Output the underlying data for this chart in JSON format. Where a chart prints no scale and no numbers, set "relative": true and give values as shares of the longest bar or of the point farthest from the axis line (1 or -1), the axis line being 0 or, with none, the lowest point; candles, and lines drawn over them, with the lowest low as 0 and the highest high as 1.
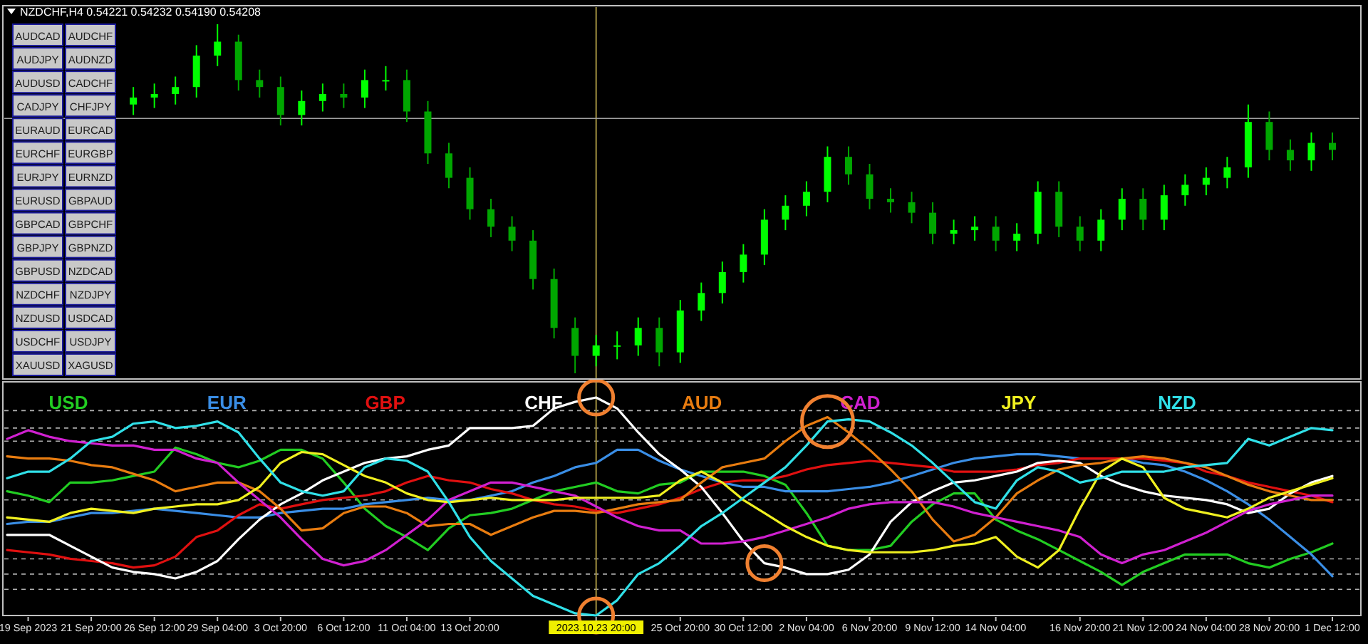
{
  "chart_data": [
    {
      "type": "candlestick",
      "title": "NZDCHF,H4 0.54221 0.54232 0.54190 0.54208",
      "relative": true,
      "colors": [
        "#00ff00",
        "#00ff00",
        "#00ff00",
        "#00ff00",
        "#00ff00",
        "#00a600",
        "#00a600",
        "#00a600",
        "#00ff00",
        "#00ff00",
        "#00a600",
        "#00ff00",
        "#00ff00",
        "#00a600",
        "#00a600",
        "#00a600",
        "#00a600",
        "#00a600",
        "#00a600",
        "#00a600",
        "#00a600",
        "#00a600",
        "#00ff00",
        "#00ff00",
        "#00ff00",
        "#00a600",
        "#00ff00",
        "#00ff00",
        "#00ff00",
        "#00ff00",
        "#00ff00",
        "#00ff00",
        "#00ff00",
        "#00ff00",
        "#00a600",
        "#00a600",
        "#00a600",
        "#00a600",
        "#00a600",
        "#00ff00",
        "#00ff00",
        "#00a600",
        "#00ff00",
        "#00ff00",
        "#00a600",
        "#00a600",
        "#00ff00",
        "#00ff00",
        "#00a600",
        "#00ff00",
        "#00ff00",
        "#00ff00",
        "#00ff00",
        "#00ff00",
        "#00a600",
        "#00a600",
        "#00ff00",
        "#00a600"
      ],
      "categories": [
        null,
        null,
        null,
        null,
        null,
        null,
        null,
        null,
        null,
        null,
        null,
        null,
        null,
        null,
        null,
        null,
        null,
        null,
        null,
        null,
        null,
        null,
        null,
        null,
        null,
        null,
        null,
        null,
        null,
        null,
        null,
        null,
        null,
        null,
        null,
        null,
        null,
        null,
        null,
        null,
        null,
        null,
        null,
        null,
        null,
        null,
        null,
        null,
        null,
        null,
        null,
        null,
        null,
        null,
        null,
        null,
        null,
        null
      ],
      "ohlc": [
        [
          0.77,
          0.82,
          0.74,
          0.79
        ],
        [
          0.79,
          0.83,
          0.76,
          0.8
        ],
        [
          0.8,
          0.85,
          0.77,
          0.82
        ],
        [
          0.82,
          0.94,
          0.79,
          0.91
        ],
        [
          0.91,
          1,
          0.88,
          0.95
        ],
        [
          0.95,
          0.97,
          0.81,
          0.84
        ],
        [
          0.84,
          0.87,
          0.79,
          0.82
        ],
        [
          0.82,
          0.85,
          0.71,
          0.74
        ],
        [
          0.74,
          0.81,
          0.71,
          0.78
        ],
        [
          0.78,
          0.83,
          0.75,
          0.8
        ],
        [
          0.8,
          0.83,
          0.76,
          0.79
        ],
        [
          0.79,
          0.87,
          0.76,
          0.84
        ],
        [
          0.84,
          0.88,
          0.81,
          0.84
        ],
        [
          0.84,
          0.87,
          0.72,
          0.75
        ],
        [
          0.75,
          0.78,
          0.6,
          0.63
        ],
        [
          0.63,
          0.66,
          0.53,
          0.56
        ],
        [
          0.56,
          0.59,
          0.44,
          0.47
        ],
        [
          0.47,
          0.5,
          0.39,
          0.42
        ],
        [
          0.42,
          0.45,
          0.35,
          0.38
        ],
        [
          0.38,
          0.41,
          0.24,
          0.27
        ],
        [
          0.27,
          0.3,
          0.1,
          0.13
        ],
        [
          0.13,
          0.16,
          0,
          0.05
        ],
        [
          0.05,
          0.11,
          0.02,
          0.08
        ],
        [
          0.08,
          0.12,
          0.04,
          0.08
        ],
        [
          0.08,
          0.16,
          0.05,
          0.13
        ],
        [
          0.13,
          0.16,
          0.02,
          0.06
        ],
        [
          0.06,
          0.21,
          0.03,
          0.18
        ],
        [
          0.18,
          0.26,
          0.15,
          0.23
        ],
        [
          0.23,
          0.32,
          0.2,
          0.29
        ],
        [
          0.29,
          0.37,
          0.26,
          0.34
        ],
        [
          0.34,
          0.47,
          0.31,
          0.44
        ],
        [
          0.44,
          0.51,
          0.41,
          0.48
        ],
        [
          0.48,
          0.55,
          0.45,
          0.52
        ],
        [
          0.52,
          0.65,
          0.49,
          0.62
        ],
        [
          0.62,
          0.65,
          0.54,
          0.57
        ],
        [
          0.57,
          0.6,
          0.47,
          0.5
        ],
        [
          0.5,
          0.53,
          0.46,
          0.49
        ],
        [
          0.49,
          0.52,
          0.43,
          0.46
        ],
        [
          0.46,
          0.49,
          0.37,
          0.4
        ],
        [
          0.4,
          0.44,
          0.37,
          0.41
        ],
        [
          0.41,
          0.45,
          0.38,
          0.42
        ],
        [
          0.42,
          0.45,
          0.35,
          0.38
        ],
        [
          0.38,
          0.43,
          0.35,
          0.4
        ],
        [
          0.4,
          0.55,
          0.37,
          0.52
        ],
        [
          0.52,
          0.55,
          0.39,
          0.42
        ],
        [
          0.42,
          0.45,
          0.35,
          0.38
        ],
        [
          0.38,
          0.47,
          0.35,
          0.44
        ],
        [
          0.44,
          0.53,
          0.41,
          0.5
        ],
        [
          0.5,
          0.53,
          0.41,
          0.44
        ],
        [
          0.44,
          0.54,
          0.41,
          0.51
        ],
        [
          0.51,
          0.57,
          0.48,
          0.54
        ],
        [
          0.54,
          0.59,
          0.51,
          0.56
        ],
        [
          0.56,
          0.62,
          0.53,
          0.59
        ],
        [
          0.59,
          0.77,
          0.56,
          0.72
        ],
        [
          0.72,
          0.75,
          0.61,
          0.64
        ],
        [
          0.64,
          0.67,
          0.58,
          0.61
        ],
        [
          0.61,
          0.69,
          0.58,
          0.66
        ],
        [
          0.66,
          0.69,
          0.61,
          0.64
        ]
      ],
      "ref_lines": [
        {
          "axis": "y",
          "value": 0.73,
          "color": "#a0a0a0"
        }
      ],
      "annotations": [
        "AUDCAD",
        "AUDCHF",
        "AUDJPY",
        "AUDNZD",
        "AUDUSD",
        "CADCHF",
        "CADJPY",
        "CHFJPY",
        "EURAUD",
        "EURCAD",
        "EURCHF",
        "EURGBP",
        "EURJPY",
        "EURNZD",
        "EURUSD",
        "GBPAUD",
        "GBPCAD",
        "GBPCHF",
        "GBPJPY",
        "GBPNZD",
        "GBPUSD",
        "NZDCAD",
        "NZDCHF",
        "NZDJPY",
        "NZDUSD",
        "USDCAD",
        "USDCHF",
        "USDJPY",
        "XAUUSD",
        "XAGUSD"
      ]
    },
    {
      "type": "line",
      "relative": true,
      "legend": "top",
      "line_style": "solid",
      "marker": "none",
      "categories": [
        null,
        "19 Sep 2023",
        null,
        null,
        "21 Sep 20:00",
        null,
        null,
        "26 Sep 12:00",
        null,
        null,
        "29 Sep 04:00",
        null,
        null,
        "3 Oct 20:00",
        null,
        null,
        "6 Oct 12:00",
        null,
        null,
        "11 Oct 04:00",
        null,
        null,
        "13 Oct 20:00",
        null,
        null,
        null,
        null,
        null,
        "2023.10.23 20:00",
        null,
        null,
        null,
        "25 Oct 20:00",
        null,
        null,
        "30 Oct 12:00",
        null,
        null,
        "2 Nov 04:00",
        null,
        null,
        "6 Nov 20:00",
        null,
        null,
        "9 Nov 12:00",
        null,
        null,
        "14 Nov 04:00",
        null,
        null,
        null,
        "16 Nov 20:00",
        null,
        null,
        "21 Nov 12:00",
        null,
        null,
        "24 Nov 04:00",
        null,
        null,
        "28 Nov 20:00",
        null,
        null,
        "1 Dec 12:00"
      ],
      "series": [
        {
          "name": "USD",
          "color": "#22cc22",
          "values": [
            0.57,
            0.55,
            0.52,
            0.61,
            0.61,
            0.62,
            0.64,
            0.66,
            0.77,
            0.74,
            0.7,
            0.68,
            0.71,
            0.76,
            0.76,
            0.72,
            0.61,
            0.49,
            0.41,
            0.36,
            0.3,
            0.4,
            0.46,
            0.47,
            0.49,
            0.53,
            0.57,
            0.59,
            0.61,
            0.57,
            0.56,
            0.6,
            0.61,
            0.66,
            0.66,
            0.66,
            0.64,
            0.6,
            0.47,
            0.32,
            0.3,
            0.3,
            0.32,
            0.43,
            0.51,
            0.56,
            0.56,
            0.44,
            0.39,
            0.35,
            0.3,
            0.25,
            0.2,
            0.14,
            0.2,
            0.24,
            0.28,
            0.28,
            0.28,
            0.24,
            0.22,
            0.26,
            0.29,
            0.33
          ]
        },
        {
          "name": "EUR",
          "color": "#3a8ee6",
          "values": [
            0.42,
            0.43,
            0.43,
            0.45,
            0.47,
            0.47,
            0.48,
            0.49,
            0.48,
            0.47,
            0.46,
            0.45,
            0.45,
            0.47,
            0.48,
            0.49,
            0.49,
            0.51,
            0.52,
            0.53,
            0.54,
            0.53,
            0.53,
            0.55,
            0.57,
            0.61,
            0.64,
            0.68,
            0.7,
            0.76,
            0.76,
            0.71,
            0.67,
            0.64,
            0.61,
            0.59,
            0.59,
            0.57,
            0.57,
            0.57,
            0.58,
            0.59,
            0.61,
            0.64,
            0.67,
            0.7,
            0.72,
            0.73,
            0.74,
            0.74,
            0.73,
            0.72,
            0.72,
            0.72,
            0.7,
            0.69,
            0.66,
            0.62,
            0.57,
            0.51,
            0.44,
            0.36,
            0.28,
            0.18
          ]
        },
        {
          "name": "GBP",
          "color": "#e01010",
          "values": [
            0.3,
            0.29,
            0.28,
            0.26,
            0.25,
            0.24,
            0.22,
            0.23,
            0.27,
            0.36,
            0.39,
            0.46,
            0.51,
            0.49,
            0.51,
            0.53,
            0.54,
            0.55,
            0.57,
            0.61,
            0.64,
            0.62,
            0.61,
            0.58,
            0.56,
            0.53,
            0.51,
            0.5,
            0.48,
            0.47,
            0.49,
            0.51,
            0.54,
            0.58,
            0.61,
            0.62,
            0.62,
            0.64,
            0.67,
            0.69,
            0.7,
            0.71,
            0.7,
            0.69,
            0.68,
            0.66,
            0.66,
            0.66,
            0.67,
            0.69,
            0.7,
            0.72,
            0.72,
            0.72,
            0.72,
            0.71,
            0.7,
            0.66,
            0.64,
            0.61,
            0.59,
            0.57,
            0.55,
            0.52
          ]
        },
        {
          "name": "CHF",
          "color": "#ffffff",
          "values": [
            0.37,
            0.37,
            0.37,
            0.32,
            0.27,
            0.22,
            0.2,
            0.19,
            0.17,
            0.2,
            0.25,
            0.35,
            0.44,
            0.51,
            0.56,
            0.62,
            0.66,
            0.7,
            0.72,
            0.73,
            0.76,
            0.78,
            0.86,
            0.86,
            0.86,
            0.87,
            0.95,
            0.98,
            1,
            0.95,
            0.84,
            0.74,
            0.67,
            0.59,
            0.47,
            0.34,
            0.24,
            0.22,
            0.19,
            0.19,
            0.21,
            0.28,
            0.43,
            0.52,
            0.57,
            0.61,
            0.62,
            0.64,
            0.66,
            0.7,
            0.71,
            0.7,
            0.64,
            0.6,
            0.57,
            0.55,
            0.54,
            0.53,
            0.51,
            0.47,
            0.49,
            0.56,
            0.61,
            0.64
          ]
        },
        {
          "name": "AUD",
          "color": "#e87c10",
          "values": [
            0.73,
            0.72,
            0.72,
            0.71,
            0.69,
            0.68,
            0.65,
            0.62,
            0.57,
            0.59,
            0.61,
            0.61,
            0.57,
            0.49,
            0.39,
            0.4,
            0.47,
            0.5,
            0.5,
            0.47,
            0.41,
            0.42,
            0.42,
            0.37,
            0.41,
            0.45,
            0.48,
            0.48,
            0.47,
            0.49,
            0.51,
            0.52,
            0.53,
            0.61,
            0.68,
            0.7,
            0.72,
            0.8,
            0.87,
            0.91,
            0.84,
            0.76,
            0.67,
            0.57,
            0.44,
            0.34,
            0.37,
            0.45,
            0.56,
            0.62,
            0.67,
            0.69,
            0.7,
            0.72,
            0.73,
            0.72,
            0.7,
            0.68,
            0.64,
            0.6,
            0.57,
            0.55,
            0.53,
            0.53
          ]
        },
        {
          "name": "CAD",
          "color": "#d020d0",
          "values": [
            0.81,
            0.85,
            0.82,
            0.8,
            0.79,
            0.78,
            0.78,
            0.76,
            0.76,
            0.72,
            0.7,
            0.61,
            0.53,
            0.45,
            0.35,
            0.26,
            0.23,
            0.25,
            0.3,
            0.37,
            0.44,
            0.53,
            0.57,
            0.61,
            0.61,
            0.59,
            0.57,
            0.55,
            0.5,
            0.45,
            0.41,
            0.39,
            0.39,
            0.33,
            0.33,
            0.34,
            0.36,
            0.39,
            0.42,
            0.45,
            0.49,
            0.51,
            0.52,
            0.52,
            0.52,
            0.5,
            0.47,
            0.45,
            0.43,
            0.41,
            0.39,
            0.36,
            0.28,
            0.24,
            0.28,
            0.3,
            0.34,
            0.38,
            0.43,
            0.48,
            0.51,
            0.53,
            0.55,
            0.55
          ]
        },
        {
          "name": "JPY",
          "color": "#f0f020",
          "values": [
            0.45,
            0.44,
            0.43,
            0.47,
            0.49,
            0.48,
            0.47,
            0.49,
            0.5,
            0.51,
            0.51,
            0.53,
            0.59,
            0.7,
            0.75,
            0.74,
            0.69,
            0.64,
            0.61,
            0.56,
            0.53,
            0.52,
            0.53,
            0.54,
            0.53,
            0.53,
            0.53,
            0.54,
            0.54,
            0.54,
            0.54,
            0.55,
            0.62,
            0.66,
            0.61,
            0.53,
            0.47,
            0.41,
            0.36,
            0.32,
            0.3,
            0.29,
            0.29,
            0.29,
            0.3,
            0.32,
            0.33,
            0.36,
            0.27,
            0.22,
            0.3,
            0.49,
            0.66,
            0.72,
            0.68,
            0.54,
            0.49,
            0.47,
            0.45,
            0.49,
            0.54,
            0.57,
            0.6,
            0.63
          ]
        },
        {
          "name": "NZD",
          "color": "#30e0e8",
          "values": [
            0.63,
            0.66,
            0.66,
            0.72,
            0.8,
            0.82,
            0.88,
            0.89,
            0.86,
            0.87,
            0.89,
            0.84,
            0.72,
            0.61,
            0.57,
            0.55,
            0.57,
            0.68,
            0.72,
            0.71,
            0.66,
            0.52,
            0.36,
            0.25,
            0.17,
            0.09,
            0.05,
            0.01,
            0,
            0.07,
            0.19,
            0.24,
            0.32,
            0.41,
            0.47,
            0.54,
            0.61,
            0.68,
            0.78,
            0.89,
            0.9,
            0.89,
            0.84,
            0.78,
            0.7,
            0.61,
            0.52,
            0.49,
            0.62,
            0.68,
            0.66,
            0.61,
            0.63,
            0.66,
            0.66,
            0.66,
            0.68,
            0.69,
            0.7,
            0.81,
            0.78,
            0.82,
            0.86,
            0.85
          ]
        }
      ],
      "ref_lines": [
        {
          "axis": "y",
          "value": 0.94,
          "color": "#b0b0b0",
          "line_style": "dashed"
        },
        {
          "axis": "y",
          "value": 0.86,
          "color": "#b0b0b0",
          "line_style": "dashed"
        },
        {
          "axis": "y",
          "value": 0.8,
          "color": "#b0b0b0",
          "line_style": "dashed"
        },
        {
          "axis": "y",
          "value": 0.53,
          "color": "#b0b0b0",
          "line_style": "dashed"
        },
        {
          "axis": "y",
          "value": 0.26,
          "color": "#b0b0b0",
          "line_style": "dashed"
        },
        {
          "axis": "y",
          "value": 0.19,
          "color": "#b0b0b0",
          "line_style": "dashed"
        },
        {
          "axis": "y",
          "value": 0.12,
          "color": "#b0b0b0",
          "line_style": "dashed"
        },
        {
          "axis": "x",
          "value": "2023.10.23 20:00",
          "color": "#a09040"
        }
      ]
    }
  ]
}
